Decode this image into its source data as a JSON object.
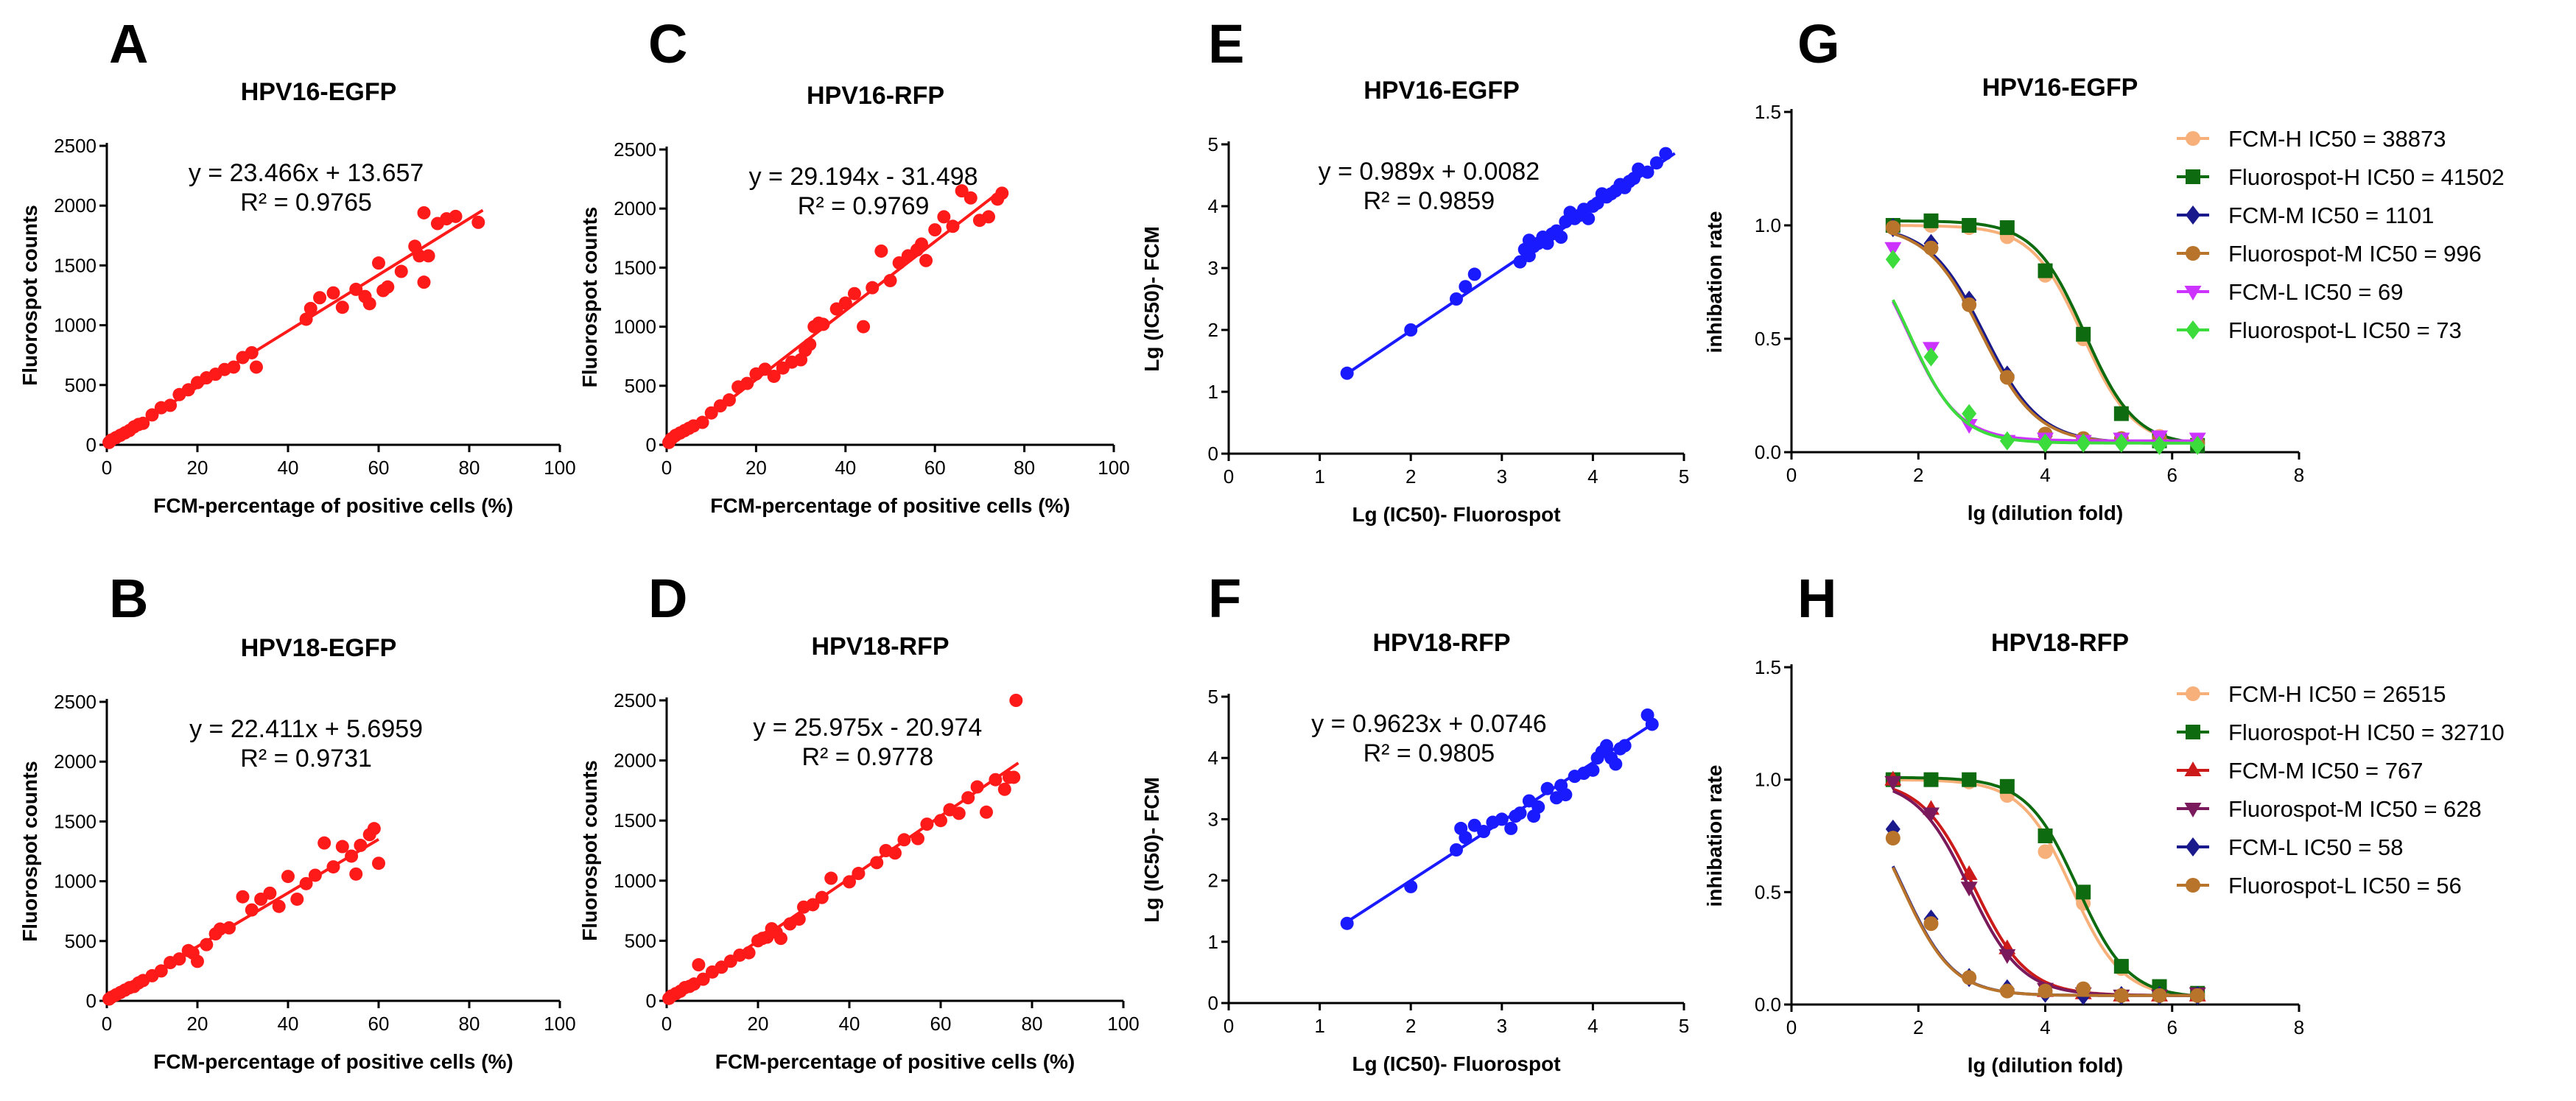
{
  "colors": {
    "red": "#ff1a1a",
    "blue": "#1a1aff",
    "light_orange": "#f7b07a",
    "dark_green": "#0f6b0f",
    "navy": "#1a1a8c",
    "brown": "#b8742a",
    "magenta": "#cc33ff",
    "light_green": "#3ddc3d",
    "crimson": "#cc1a1a",
    "purple": "#7a1a5c"
  },
  "chart_data": [
    {
      "panel": "A",
      "type": "scatter",
      "title": "HPV16-EGFP",
      "xlabel": "FCM-percentage of positive cells (%)",
      "ylabel": "Fluorospot counts",
      "xlim": [
        0,
        100
      ],
      "ylim": [
        0,
        2500
      ],
      "xticks": [
        "0",
        "20",
        "40",
        "60",
        "80",
        "100"
      ],
      "yticks": [
        "0",
        "500",
        "1000",
        "1500",
        "2000",
        "2500"
      ],
      "equation": "y = 23.466x + 13.657",
      "r2": "R² = 0.9765",
      "fit": {
        "slope": 23.466,
        "intercept": 13.657,
        "x_range": [
          0,
          83
        ]
      },
      "color_key": "red",
      "x": [
        0.5,
        1,
        2,
        3,
        4,
        5,
        6,
        7,
        8,
        10,
        12,
        14,
        16,
        18,
        20,
        22,
        24,
        26,
        28,
        30,
        32,
        33,
        44,
        45,
        47,
        50,
        52,
        55,
        57,
        58,
        60,
        61,
        62,
        65,
        68,
        69,
        70,
        70,
        71,
        73,
        75,
        77,
        82
      ],
      "y": [
        20,
        40,
        60,
        80,
        100,
        120,
        150,
        170,
        180,
        250,
        310,
        330,
        420,
        460,
        520,
        560,
        590,
        630,
        650,
        730,
        770,
        650,
        1050,
        1140,
        1230,
        1270,
        1150,
        1300,
        1240,
        1180,
        1520,
        1290,
        1320,
        1450,
        1660,
        1580,
        1940,
        1360,
        1580,
        1850,
        1890,
        1910,
        1860
      ]
    },
    {
      "panel": "B",
      "type": "scatter",
      "title": "HPV18-EGFP",
      "xlabel": "FCM-percentage of positive cells (%)",
      "ylabel": "Fluorospot counts",
      "xlim": [
        0,
        100
      ],
      "ylim": [
        0,
        2500
      ],
      "xticks": [
        "0",
        "20",
        "40",
        "60",
        "80",
        "100"
      ],
      "yticks": [
        "0",
        "500",
        "1000",
        "1500",
        "2000",
        "2500"
      ],
      "equation": "y = 22.411x + 5.6959",
      "r2": "R² = 0.9731",
      "fit": {
        "slope": 22.411,
        "intercept": 5.6959,
        "x_range": [
          0,
          60
        ]
      },
      "color_key": "red",
      "x": [
        0.5,
        1,
        2,
        3,
        4,
        5,
        6,
        7,
        8,
        10,
        12,
        14,
        16,
        18,
        19,
        20,
        22,
        24,
        25,
        27,
        30,
        32,
        34,
        36,
        38,
        40,
        42,
        44,
        46,
        48,
        50,
        52,
        54,
        55,
        56,
        58,
        59,
        60
      ],
      "y": [
        15,
        30,
        50,
        70,
        90,
        110,
        120,
        150,
        170,
        210,
        250,
        320,
        350,
        420,
        400,
        330,
        470,
        560,
        600,
        610,
        870,
        760,
        850,
        900,
        790,
        1040,
        850,
        980,
        1050,
        1320,
        1120,
        1290,
        1210,
        1060,
        1300,
        1390,
        1440,
        1150
      ]
    },
    {
      "panel": "C",
      "type": "scatter",
      "title": "HPV16-RFP",
      "xlabel": "FCM-percentage of positive cells (%)",
      "ylabel": "Fluorospot counts",
      "xlim": [
        0,
        100
      ],
      "ylim": [
        0,
        2500
      ],
      "xticks": [
        "0",
        "20",
        "40",
        "60",
        "80",
        "100"
      ],
      "yticks": [
        "0",
        "500",
        "1000",
        "1500",
        "2000",
        "2500"
      ],
      "equation": "y = 29.194x - 31.498",
      "r2": "R² = 0.9769",
      "fit": {
        "slope": 29.194,
        "intercept": -31.498,
        "x_range": [
          1,
          75
        ]
      },
      "color_key": "red",
      "x": [
        0.5,
        1,
        2,
        3,
        4,
        5,
        6,
        8,
        10,
        12,
        14,
        16,
        18,
        20,
        22,
        24,
        26,
        28,
        30,
        31,
        32,
        33,
        34,
        35,
        38,
        40,
        42,
        44,
        46,
        48,
        50,
        52,
        54,
        56,
        57,
        58,
        60,
        62,
        64,
        66,
        68,
        70,
        72,
        74,
        75
      ],
      "y": [
        20,
        50,
        80,
        100,
        120,
        140,
        160,
        190,
        270,
        330,
        380,
        490,
        520,
        600,
        640,
        580,
        650,
        700,
        720,
        800,
        850,
        1000,
        1030,
        1020,
        1150,
        1200,
        1280,
        1000,
        1330,
        1640,
        1390,
        1540,
        1600,
        1650,
        1700,
        1560,
        1820,
        1930,
        1850,
        2150,
        2090,
        1900,
        1930,
        2080,
        2130
      ]
    },
    {
      "panel": "D",
      "type": "scatter",
      "title": "HPV18-RFP",
      "xlabel": "FCM-percentage of positive cells (%)",
      "ylabel": "Fluorospot counts",
      "xlim": [
        0,
        100
      ],
      "ylim": [
        0,
        2500
      ],
      "xticks": [
        "0",
        "20",
        "40",
        "60",
        "80",
        "100"
      ],
      "yticks": [
        "0",
        "500",
        "1000",
        "1500",
        "2000",
        "2500"
      ],
      "equation": "y = 25.975x - 20.974",
      "r2": "R² = 0.9778",
      "fit": {
        "slope": 25.975,
        "intercept": -20.974,
        "x_range": [
          0,
          77
        ]
      },
      "color_key": "red",
      "x": [
        0.5,
        1,
        2,
        3,
        4,
        5,
        6,
        7,
        8,
        10,
        12,
        14,
        16,
        18,
        20,
        21,
        22,
        23,
        24,
        25,
        27,
        29,
        30,
        32,
        34,
        36,
        40,
        42,
        46,
        48,
        50,
        52,
        55,
        57,
        60,
        62,
        64,
        66,
        68,
        70,
        72,
        74,
        75,
        76,
        76.5
      ],
      "y": [
        20,
        40,
        60,
        80,
        110,
        120,
        140,
        300,
        180,
        240,
        280,
        330,
        380,
        400,
        500,
        520,
        530,
        600,
        570,
        520,
        640,
        680,
        780,
        800,
        860,
        1020,
        990,
        1060,
        1150,
        1250,
        1230,
        1340,
        1350,
        1470,
        1500,
        1590,
        1560,
        1690,
        1780,
        1570,
        1840,
        1760,
        1860,
        1860,
        2500
      ]
    },
    {
      "panel": "E",
      "type": "scatter",
      "title": "HPV16-EGFP",
      "xlabel": "Lg (IC50)- Fluorospot",
      "ylabel": "Lg (IC50)- FCM",
      "xlim": [
        0,
        5
      ],
      "ylim": [
        0,
        5
      ],
      "xticks": [
        "0",
        "1",
        "2",
        "3",
        "4",
        "5"
      ],
      "yticks": [
        "0",
        "1",
        "2",
        "3",
        "4",
        "5"
      ],
      "equation": "y = 0.989x + 0.0082",
      "r2": "R² = 0.9859",
      "fit": {
        "slope": 0.989,
        "intercept": 0.0082,
        "x_range": [
          1.3,
          4.9
        ]
      },
      "color_key": "blue",
      "x": [
        1.3,
        2.0,
        2.5,
        2.6,
        2.7,
        3.2,
        3.25,
        3.3,
        3.3,
        3.35,
        3.4,
        3.45,
        3.5,
        3.55,
        3.6,
        3.65,
        3.7,
        3.75,
        3.8,
        3.85,
        3.9,
        3.95,
        4.0,
        4.05,
        4.1,
        4.15,
        4.2,
        4.25,
        4.3,
        4.35,
        4.4,
        4.45,
        4.5,
        4.6,
        4.7,
        4.8
      ],
      "y": [
        1.3,
        2.0,
        2.5,
        2.7,
        2.9,
        3.1,
        3.3,
        3.45,
        3.2,
        3.35,
        3.4,
        3.5,
        3.4,
        3.55,
        3.6,
        3.5,
        3.75,
        3.9,
        3.8,
        3.85,
        3.95,
        3.8,
        4.0,
        4.05,
        4.2,
        4.15,
        4.2,
        4.25,
        4.35,
        4.3,
        4.4,
        4.45,
        4.6,
        4.55,
        4.7,
        4.85
      ]
    },
    {
      "panel": "F",
      "type": "scatter",
      "title": "HPV18-RFP",
      "xlabel": "Lg (IC50)- Fluorospot",
      "ylabel": "Lg (IC50)- FCM",
      "xlim": [
        0,
        5
      ],
      "ylim": [
        0,
        5
      ],
      "xticks": [
        "0",
        "1",
        "2",
        "3",
        "4",
        "5"
      ],
      "yticks": [
        "0",
        "1",
        "2",
        "3",
        "4",
        "5"
      ],
      "equation": "y = 0.9623x + 0.0746",
      "r2": "R² = 0.9805",
      "fit": {
        "slope": 0.9623,
        "intercept": 0.0746,
        "x_range": [
          1.3,
          4.7
        ]
      },
      "color_key": "blue",
      "x": [
        1.3,
        2.0,
        2.5,
        2.55,
        2.6,
        2.7,
        2.8,
        2.9,
        3.0,
        3.1,
        3.15,
        3.2,
        3.3,
        3.35,
        3.4,
        3.5,
        3.6,
        3.65,
        3.7,
        3.8,
        3.9,
        4.0,
        4.05,
        4.1,
        4.15,
        4.2,
        4.25,
        4.3,
        4.35,
        4.6,
        4.65
      ],
      "y": [
        1.3,
        1.9,
        2.5,
        2.85,
        2.7,
        2.9,
        2.8,
        2.95,
        3.0,
        2.85,
        3.05,
        3.1,
        3.3,
        3.05,
        3.2,
        3.5,
        3.35,
        3.55,
        3.4,
        3.7,
        3.75,
        3.8,
        4.0,
        4.1,
        4.2,
        4.0,
        3.9,
        4.15,
        4.2,
        4.7,
        4.55
      ]
    },
    {
      "panel": "G",
      "type": "line",
      "title": "HPV16-EGFP",
      "xlabel": "lg (dilution fold)",
      "ylabel": "inhibation rate",
      "xlim": [
        0,
        8
      ],
      "ylim": [
        0,
        1.5
      ],
      "xticks": [
        "0",
        "2",
        "4",
        "6",
        "8"
      ],
      "yticks": [
        "0.0",
        "0.5",
        "1.0",
        "1.5"
      ],
      "x": [
        1.6,
        2.2,
        2.8,
        3.4,
        4.0,
        4.6,
        5.2,
        5.8,
        6.4
      ],
      "series": [
        {
          "name": "FCM-H IC50 = 38873",
          "color_key": "light_orange",
          "marker": "circle",
          "top": 1.0,
          "bottom": 0.03,
          "logic50": 4.59,
          "hill": 2.4,
          "values": [
            1.0,
            1.0,
            0.99,
            0.95,
            0.78,
            0.5,
            0.17,
            0.07,
            0.04
          ]
        },
        {
          "name": "Fluorospot-H IC50 = 41502",
          "color_key": "dark_green",
          "marker": "square",
          "top": 1.02,
          "bottom": 0.03,
          "logic50": 4.62,
          "hill": 2.4,
          "values": [
            1.0,
            1.02,
            1.0,
            0.99,
            0.8,
            0.52,
            0.17,
            0.05,
            0.03
          ]
        },
        {
          "name": "FCM-M IC50 = 1101",
          "color_key": "navy",
          "marker": "diamond",
          "top": 1.0,
          "bottom": 0.04,
          "logic50": 3.04,
          "hill": 2.2,
          "values": [
            0.99,
            0.92,
            0.67,
            0.34,
            0.07,
            0.05,
            0.05,
            0.04,
            0.04
          ]
        },
        {
          "name": "Fluorospot-M IC50 = 996",
          "color_key": "brown",
          "marker": "circle",
          "top": 1.0,
          "bottom": 0.04,
          "logic50": 3.0,
          "hill": 2.2,
          "values": [
            0.99,
            0.9,
            0.65,
            0.33,
            0.08,
            0.06,
            0.06,
            0.06,
            0.04
          ]
        },
        {
          "name": "FCM-L IC50 = 69",
          "color_key": "magenta",
          "marker": "triangle-down",
          "top": 1.0,
          "bottom": 0.05,
          "logic50": 1.84,
          "hill": 2.4,
          "values": [
            0.9,
            0.46,
            0.12,
            0.05,
            0.06,
            0.05,
            0.06,
            0.07,
            0.06
          ]
        },
        {
          "name": "Fluorospot-L IC50 = 73",
          "color_key": "light_green",
          "marker": "diamond",
          "top": 1.0,
          "bottom": 0.04,
          "logic50": 1.86,
          "hill": 2.4,
          "values": [
            0.85,
            0.42,
            0.17,
            0.05,
            0.04,
            0.04,
            0.04,
            0.03,
            0.03
          ]
        }
      ]
    },
    {
      "panel": "H",
      "type": "line",
      "title": "HPV18-RFP",
      "xlabel": "lg (dilution fold)",
      "ylabel": "inhibation rate",
      "xlim": [
        0,
        8
      ],
      "ylim": [
        0,
        1.5
      ],
      "xticks": [
        "0",
        "2",
        "4",
        "6",
        "8"
      ],
      "yticks": [
        "0.0",
        "0.5",
        "1.0",
        "1.5"
      ],
      "x": [
        1.6,
        2.2,
        2.8,
        3.4,
        4.0,
        4.6,
        5.2,
        5.8,
        6.4
      ],
      "series": [
        {
          "name": "FCM-H IC50 = 26515",
          "color_key": "light_orange",
          "marker": "circle",
          "top": 1.0,
          "bottom": 0.03,
          "logic50": 4.42,
          "hill": 2.4,
          "values": [
            1.0,
            1.0,
            0.99,
            0.93,
            0.68,
            0.45,
            0.16,
            0.07,
            0.04
          ]
        },
        {
          "name": "Fluorospot-H IC50 = 32710",
          "color_key": "dark_green",
          "marker": "square",
          "top": 1.01,
          "bottom": 0.03,
          "logic50": 4.51,
          "hill": 2.4,
          "values": [
            1.0,
            1.0,
            1.0,
            0.97,
            0.75,
            0.5,
            0.17,
            0.08,
            0.05
          ]
        },
        {
          "name": "FCM-M IC50 = 767",
          "color_key": "crimson",
          "marker": "triangle-up",
          "top": 1.0,
          "bottom": 0.04,
          "logic50": 2.88,
          "hill": 2.3,
          "values": [
            1.0,
            0.87,
            0.58,
            0.25,
            0.06,
            0.05,
            0.04,
            0.04,
            0.04
          ]
        },
        {
          "name": "Fluorospot-M IC50 = 628",
          "color_key": "purple",
          "marker": "triangle-down",
          "top": 1.0,
          "bottom": 0.04,
          "logic50": 2.8,
          "hill": 2.3,
          "values": [
            0.99,
            0.85,
            0.52,
            0.22,
            0.07,
            0.05,
            0.04,
            0.04,
            0.05
          ]
        },
        {
          "name": "FCM-L IC50 = 58",
          "color_key": "navy",
          "marker": "diamond",
          "top": 1.0,
          "bottom": 0.04,
          "logic50": 1.76,
          "hill": 2.4,
          "values": [
            0.78,
            0.38,
            0.12,
            0.07,
            0.05,
            0.04,
            0.04,
            0.04,
            0.04
          ]
        },
        {
          "name": "Fluorospot-L IC50 = 56",
          "color_key": "brown",
          "marker": "circle",
          "top": 1.0,
          "bottom": 0.04,
          "logic50": 1.75,
          "hill": 2.4,
          "values": [
            0.74,
            0.36,
            0.12,
            0.06,
            0.06,
            0.07,
            0.04,
            0.04,
            0.04
          ]
        }
      ]
    }
  ]
}
